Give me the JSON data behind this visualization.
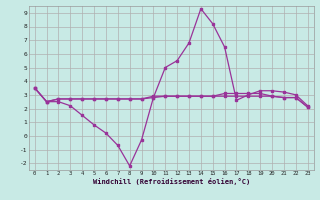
{
  "xlabel": "Windchill (Refroidissement éolien,°C)",
  "background_color": "#c8eae5",
  "grid_color": "#b0b0b0",
  "line_color": "#993399",
  "xlim": [
    -0.5,
    23.5
  ],
  "ylim": [
    -2.5,
    9.5
  ],
  "xticks": [
    0,
    1,
    2,
    3,
    4,
    5,
    6,
    7,
    8,
    9,
    10,
    11,
    12,
    13,
    14,
    15,
    16,
    17,
    18,
    19,
    20,
    21,
    22,
    23
  ],
  "yticks": [
    -2,
    -1,
    0,
    1,
    2,
    3,
    4,
    5,
    6,
    7,
    8,
    9
  ],
  "series1_x": [
    0,
    1,
    2,
    3,
    4,
    5,
    6,
    7,
    8,
    9,
    10,
    11,
    12,
    13,
    14,
    15,
    16,
    17,
    18,
    19,
    20,
    21,
    22,
    23
  ],
  "series1_y": [
    3.5,
    2.5,
    2.5,
    2.2,
    1.5,
    0.8,
    0.2,
    -0.7,
    -2.2,
    -0.3,
    2.8,
    5.0,
    5.5,
    6.8,
    9.3,
    8.2,
    6.5,
    2.6,
    3.0,
    3.3,
    3.3,
    3.2,
    3.0,
    2.2
  ],
  "series2_x": [
    0,
    1,
    2,
    3,
    4,
    5,
    6,
    7,
    8,
    9,
    10,
    11,
    12,
    13,
    14,
    15,
    16,
    17,
    18,
    19,
    20,
    21,
    22,
    23
  ],
  "series2_y": [
    3.5,
    2.5,
    2.7,
    2.7,
    2.7,
    2.7,
    2.7,
    2.7,
    2.7,
    2.7,
    2.8,
    2.9,
    2.9,
    2.9,
    2.9,
    2.9,
    2.9,
    2.9,
    2.9,
    2.9,
    2.9,
    2.8,
    2.8,
    2.1
  ],
  "series3_x": [
    0,
    1,
    2,
    3,
    4,
    5,
    6,
    7,
    8,
    9,
    10,
    11,
    12,
    13,
    14,
    15,
    16,
    17,
    18,
    19,
    20,
    21,
    22,
    23
  ],
  "series3_y": [
    3.5,
    2.5,
    2.7,
    2.7,
    2.7,
    2.7,
    2.7,
    2.7,
    2.7,
    2.7,
    2.9,
    2.9,
    2.9,
    2.9,
    2.9,
    2.9,
    3.1,
    3.1,
    3.1,
    3.1,
    2.9,
    2.8,
    2.8,
    2.1
  ]
}
